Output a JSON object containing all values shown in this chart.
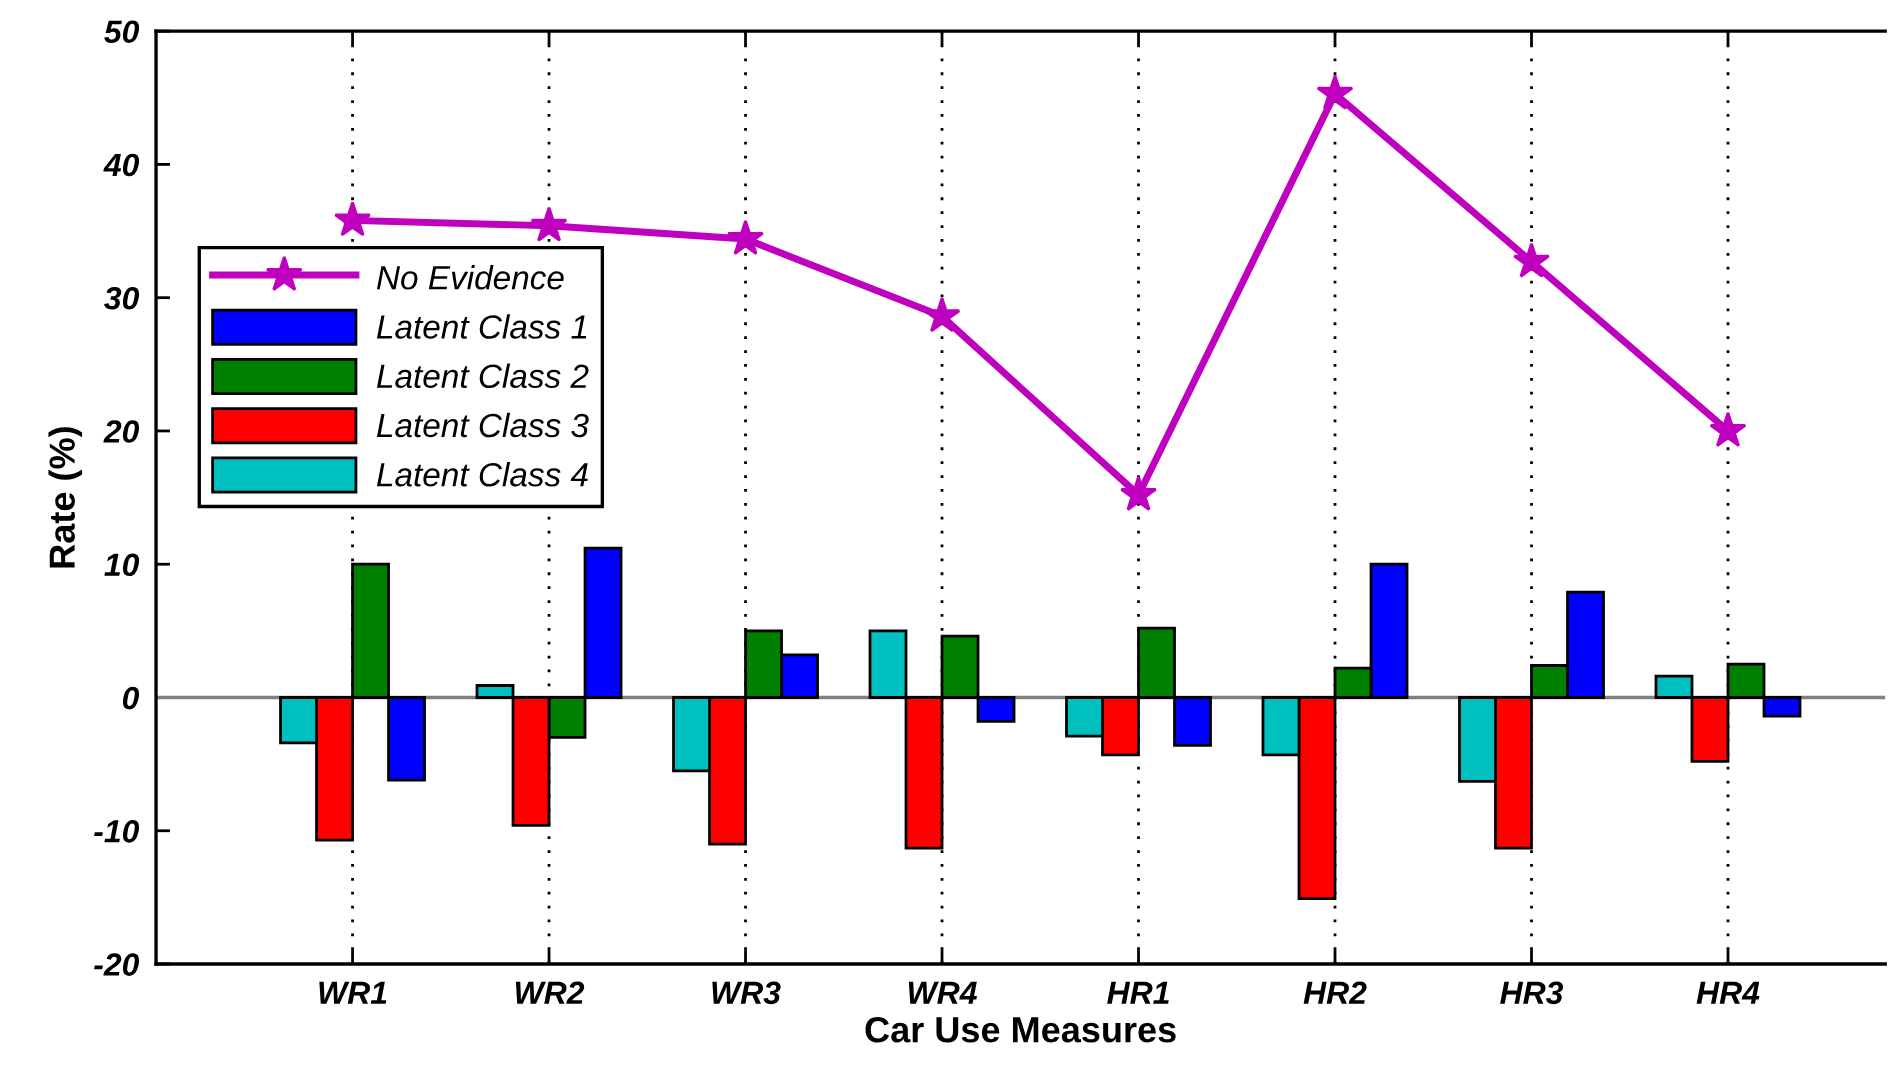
{
  "chart_data": {
    "type": "bar",
    "xlabel": "Car Use Measures",
    "ylabel": "Rate (%)",
    "categories": [
      "WR1",
      "WR2",
      "WR3",
      "WR4",
      "HR1",
      "HR2",
      "HR3",
      "HR4"
    ],
    "series": [
      {
        "name": "No Evidence",
        "type": "line",
        "marker": "star",
        "line_style": "solid",
        "color": "#bf00bf",
        "values": [
          35.8,
          35.4,
          34.4,
          28.6,
          15.2,
          45.3,
          32.7,
          20.0
        ]
      },
      {
        "name": "Latent Class 1",
        "color": "#0000ff",
        "values": [
          -6.2,
          11.2,
          3.2,
          -1.8,
          -3.6,
          10.0,
          7.9,
          -1.4
        ]
      },
      {
        "name": "Latent Class 2",
        "color": "#008000",
        "values": [
          10.0,
          -3.0,
          5.0,
          4.6,
          5.2,
          2.2,
          2.4,
          2.5
        ]
      },
      {
        "name": "Latent Class 3",
        "color": "#ff0000",
        "values": [
          -10.7,
          -9.6,
          -11.0,
          -11.3,
          -4.3,
          -15.1,
          -11.3,
          -4.8
        ]
      },
      {
        "name": "Latent Class 4",
        "color": "#00bfbf",
        "values": [
          -3.4,
          0.9,
          -5.5,
          5.0,
          -2.9,
          -4.3,
          -6.3,
          1.6
        ]
      }
    ],
    "ylim": [
      -20,
      50
    ],
    "yticks": [
      -20,
      -10,
      0,
      10,
      20,
      30,
      40,
      50
    ],
    "grid": "x",
    "legend": "upper left",
    "ref_lines": [
      {
        "axis": "y",
        "value": 0,
        "color": "#808080"
      }
    ]
  }
}
